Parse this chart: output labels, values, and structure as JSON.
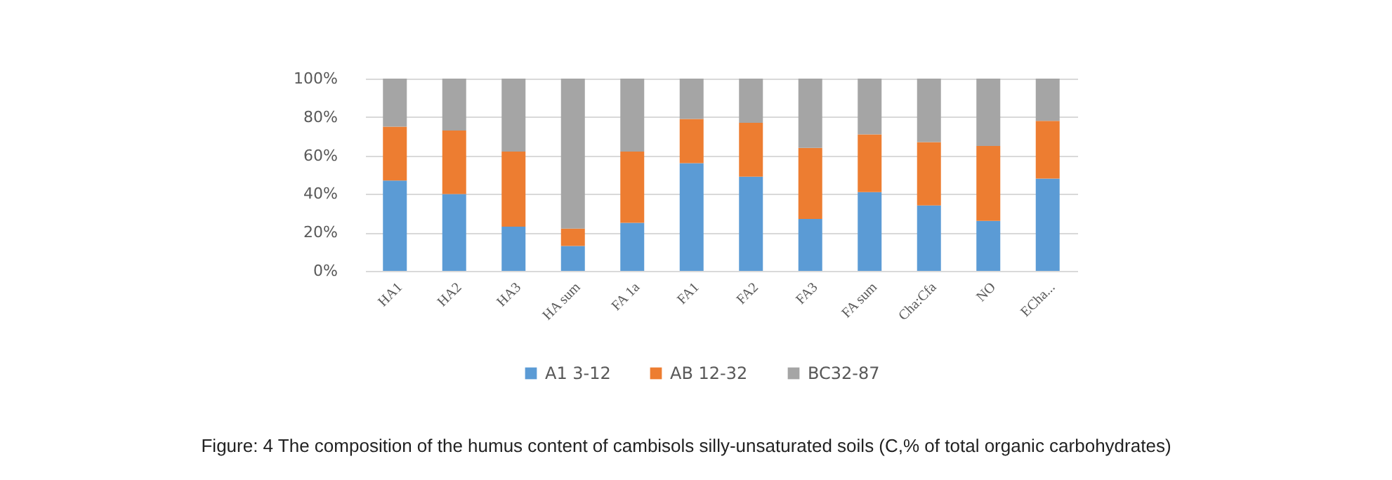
{
  "chart_data": {
    "type": "bar",
    "annotations": [
      "Figure: 4 The composition of the humus content of cambisols silly-unsaturated soils (C,% of total organic carbohydrates)"
    ],
    "categories": [
      "HA1",
      "HA2",
      "HA3",
      "HA sum",
      "FA 1a",
      "FA1",
      "FA2",
      "FA3",
      "FA sum",
      "Cha:Cfa",
      "NO",
      "ECha..."
    ],
    "series": [
      {
        "name": "A1 3-12",
        "color": "#5b9bd5",
        "values": [
          47,
          40,
          23,
          13,
          25,
          56,
          49,
          27,
          41,
          34,
          26,
          48
        ]
      },
      {
        "name": "AB 12-32",
        "color": "#ed7d31",
        "values": [
          28,
          33,
          39,
          9,
          37,
          23,
          28,
          37,
          30,
          33,
          39,
          30
        ]
      },
      {
        "name": "BC32-87",
        "color": "#a5a5a5",
        "values": [
          25,
          27,
          38,
          78,
          38,
          21,
          23,
          36,
          29,
          33,
          35,
          22
        ]
      }
    ],
    "stacked": true,
    "ylim": [
      0,
      100
    ],
    "yticks": [
      {
        "value": 0,
        "label": "0%"
      },
      {
        "value": 20,
        "label": "20%"
      },
      {
        "value": 40,
        "label": "40%"
      },
      {
        "value": 60,
        "label": "60%"
      },
      {
        "value": 80,
        "label": "80%"
      },
      {
        "value": 100,
        "label": "100%"
      }
    ],
    "grid": "y",
    "legend": "bottom"
  }
}
